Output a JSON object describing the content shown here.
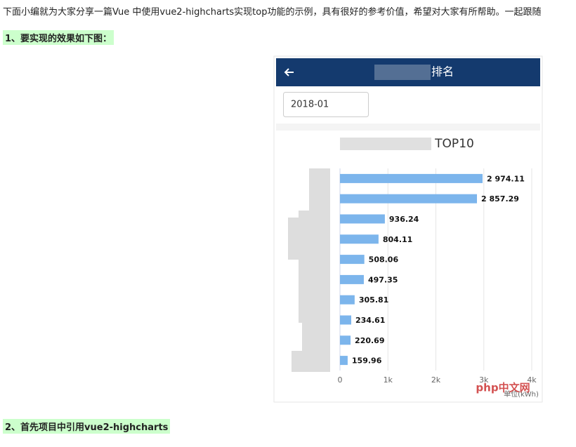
{
  "intro": "下面小编就为大家分享一篇Vue 中使用vue2-highcharts实现top功能的示例，具有很好的参考价值，希望对大家有所帮助。一起跟随",
  "sections": [
    {
      "heading": "1、要实现的效果如下图："
    },
    {
      "heading": "2、首先项目中引用vue2-highcharts"
    }
  ],
  "screenshot": {
    "header_title": "排名",
    "date": "2018-01",
    "watermark": "php中文网"
  },
  "chart_data": {
    "type": "bar",
    "orientation": "horizontal",
    "title": "TOP10",
    "xlabel": "单位(kWh)",
    "categories": [
      null,
      null,
      null,
      null,
      null,
      null,
      null,
      null,
      null,
      null
    ],
    "values": [
      2974.11,
      2857.29,
      936.24,
      804.11,
      508.06,
      497.35,
      305.81,
      234.61,
      220.69,
      159.96
    ],
    "value_labels": [
      "2 974.11",
      "2 857.29",
      "936.24",
      "804.11",
      "508.06",
      "497.35",
      "305.81",
      "234.61",
      "220.69",
      "159.96"
    ],
    "color": "#7cb5ec",
    "xlim": [
      0,
      4000
    ],
    "xticks": [
      0,
      {
        "value": 1000,
        "label": "1k"
      },
      {
        "value": 2000,
        "label": "2k"
      },
      {
        "value": 3000,
        "label": "3k"
      },
      {
        "value": 4000,
        "label": "4k"
      }
    ],
    "grid": true
  }
}
